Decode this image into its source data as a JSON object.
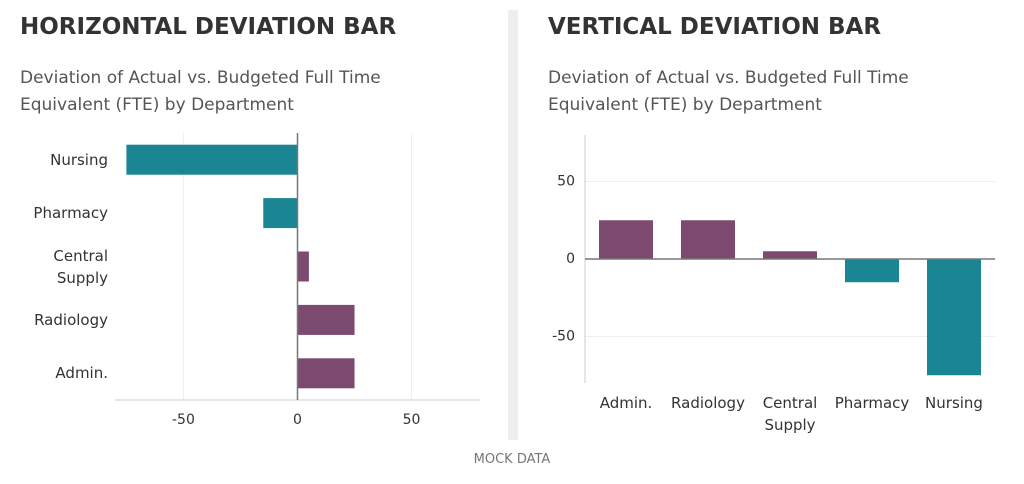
{
  "chart_data": [
    {
      "type": "bar",
      "orientation": "horizontal",
      "title": "HORIZONTAL DEVIATION BAR",
      "subtitle": "Deviation of Actual vs. Budgeted Full Time Equivalent (FTE) by Department",
      "categories": [
        "Nursing",
        "Pharmacy",
        "Central Supply",
        "Radiology",
        "Admin."
      ],
      "values": [
        -75,
        -15,
        5,
        25,
        25
      ],
      "positive_color": "#7b4a6e",
      "negative_color": "#1a8593",
      "xlim": [
        -80,
        80
      ],
      "xticks": [
        -50,
        0,
        50
      ],
      "grid": true
    },
    {
      "type": "bar",
      "orientation": "vertical",
      "title": "VERTICAL DEVIATION BAR",
      "subtitle": "Deviation of Actual vs. Budgeted Full Time Equivalent (FTE) by Department",
      "categories": [
        "Admin.",
        "Radiology",
        "Central Supply",
        "Pharmacy",
        "Nursing"
      ],
      "values": [
        25,
        25,
        5,
        -15,
        -75
      ],
      "positive_color": "#7b4a6e",
      "negative_color": "#1a8593",
      "ylim": [
        -80,
        80
      ],
      "yticks": [
        -50,
        0,
        50
      ],
      "grid": true
    }
  ],
  "footer": "MOCK DATA"
}
